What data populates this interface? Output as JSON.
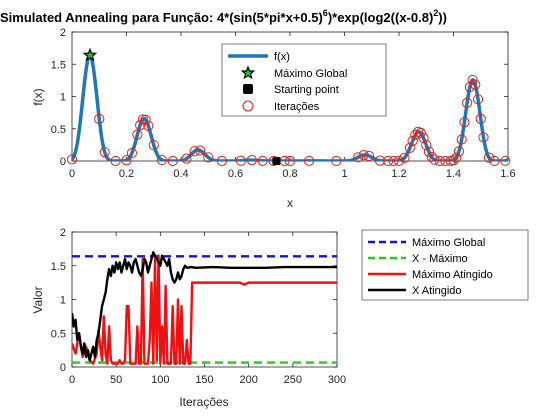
{
  "colors": {
    "fx": "#1f77b4",
    "iter": "#e8201a",
    "global_max": "#1010ee",
    "x_max": "#22cc22",
    "max_reached": "#ee1111",
    "x_reached": "#000000",
    "star": "#22bb22"
  },
  "chart_data": [
    {
      "type": "line",
      "title_main": "Simulated Annealing para Função:  4*(sin(5*pi*x+0.5)",
      "title_exp1": "6",
      "title_mid": ")*exp(log2((x-0.8)",
      "title_exp2": "2",
      "title_end": "))",
      "xlabel": "x",
      "ylabel": "f(x)",
      "xlim": [
        0,
        1.6
      ],
      "ylim": [
        0,
        2
      ],
      "xticks": [
        "0",
        "0.2",
        "0.4",
        "0.6",
        "0.8",
        "1",
        "1.2",
        "1.4",
        "1.6"
      ],
      "yticks": [
        "0",
        "0.5",
        "1",
        "1.5",
        "2"
      ],
      "grid": false,
      "legend": {
        "placement": "top-center",
        "entries": [
          "f(x)",
          "Máximo Global",
          "Starting point",
          "Iterações"
        ]
      },
      "global_max": {
        "x": 0.066,
        "y": 1.64
      },
      "starting_point": {
        "x": 0.75,
        "y": 0.0
      },
      "iterations_x": [
        0.0,
        0.1,
        0.12,
        0.16,
        0.2,
        0.22,
        0.24,
        0.25,
        0.26,
        0.27,
        0.28,
        0.3,
        0.33,
        0.37,
        0.42,
        0.45,
        0.47,
        0.5,
        0.55,
        0.62,
        0.66,
        0.7,
        0.74,
        0.78,
        0.8,
        0.87,
        0.97,
        1.05,
        1.07,
        1.09,
        1.13,
        1.16,
        1.18,
        1.2,
        1.22,
        1.24,
        1.25,
        1.26,
        1.27,
        1.28,
        1.29,
        1.3,
        1.31,
        1.32,
        1.33,
        1.35,
        1.37,
        1.39,
        1.4,
        1.41,
        1.42,
        1.43,
        1.44,
        1.45,
        1.46,
        1.47,
        1.48,
        1.49,
        1.5,
        1.51,
        1.53,
        1.55,
        1.59
      ]
    },
    {
      "type": "line",
      "xlabel": "Iterações",
      "ylabel": "Valor",
      "xlim": [
        0,
        300
      ],
      "ylim": [
        0,
        2
      ],
      "xticks": [
        "0",
        "50",
        "100",
        "150",
        "200",
        "250",
        "300"
      ],
      "yticks": [
        "0",
        "0.5",
        "1",
        "1.5",
        "2"
      ],
      "grid": false,
      "legend": {
        "placement": "outside-right"
      },
      "series": [
        {
          "name": "Máximo Global",
          "style": "dashed",
          "x": [
            0,
            300
          ],
          "values": [
            1.64,
            1.64
          ]
        },
        {
          "name": "X - Máximo",
          "style": "dashed",
          "x": [
            0,
            300
          ],
          "values": [
            0.066,
            0.066
          ]
        },
        {
          "name": "Máximo Atingido",
          "style": "solid",
          "x": [
            0,
            4,
            8,
            12,
            16,
            20,
            24,
            28,
            30,
            32,
            34,
            36,
            38,
            40,
            42,
            44,
            46,
            48,
            50,
            52,
            54,
            56,
            58,
            60,
            62,
            64,
            66,
            68,
            70,
            72,
            74,
            76,
            78,
            80,
            82,
            84,
            86,
            88,
            90,
            92,
            94,
            96,
            98,
            100,
            102,
            104,
            106,
            108,
            110,
            112,
            114,
            116,
            118,
            120,
            122,
            124,
            126,
            128,
            130,
            132,
            134,
            136,
            140,
            150,
            160,
            170,
            180,
            190,
            195,
            200,
            210,
            300
          ],
          "values": [
            0.35,
            0.2,
            0.5,
            0.15,
            0.3,
            0.1,
            0.05,
            0.2,
            0.55,
            0.3,
            0.1,
            0.75,
            0.2,
            0.05,
            0.6,
            0.1,
            0.05,
            0.05,
            0.05,
            0.05,
            0.1,
            0.05,
            0.05,
            0.1,
            0.9,
            0.9,
            0.05,
            0.05,
            0.05,
            0.05,
            0.6,
            0.05,
            0.05,
            1.6,
            0.05,
            0.05,
            0.05,
            0.4,
            1.25,
            0.05,
            1.6,
            0.1,
            1.65,
            0.05,
            0.6,
            0.05,
            1.2,
            0.05,
            0.05,
            0.05,
            0.9,
            0.05,
            0.05,
            1.0,
            0.05,
            0.9,
            0.05,
            0.05,
            0.4,
            0.05,
            0.05,
            1.25,
            1.25,
            1.25,
            1.25,
            1.25,
            1.25,
            1.25,
            1.22,
            1.25,
            1.25,
            1.25
          ]
        },
        {
          "name": "X Atingido",
          "style": "solid",
          "x": [
            0,
            2,
            4,
            6,
            8,
            10,
            12,
            14,
            16,
            18,
            20,
            22,
            24,
            26,
            28,
            30,
            32,
            34,
            36,
            38,
            40,
            42,
            44,
            46,
            48,
            50,
            52,
            54,
            56,
            58,
            60,
            62,
            64,
            66,
            68,
            70,
            72,
            74,
            76,
            78,
            80,
            82,
            84,
            86,
            88,
            90,
            92,
            94,
            96,
            98,
            100,
            102,
            104,
            106,
            108,
            110,
            112,
            114,
            116,
            118,
            120,
            122,
            124,
            126,
            128,
            130,
            135,
            140,
            160,
            180,
            200,
            220,
            240,
            260,
            280,
            300
          ],
          "values": [
            0.8,
            0.6,
            0.7,
            0.4,
            0.5,
            0.3,
            0.2,
            0.35,
            0.15,
            0.25,
            0.1,
            0.2,
            0.3,
            0.15,
            0.4,
            0.5,
            0.7,
            0.9,
            1.0,
            1.1,
            1.3,
            1.45,
            1.35,
            1.5,
            1.4,
            1.55,
            1.45,
            1.55,
            1.4,
            1.5,
            1.6,
            1.45,
            1.55,
            1.5,
            1.4,
            1.55,
            1.6,
            1.5,
            1.4,
            1.35,
            1.45,
            1.6,
            1.55,
            1.4,
            1.5,
            1.6,
            1.7,
            1.65,
            1.6,
            1.55,
            1.5,
            1.65,
            1.6,
            1.55,
            1.5,
            1.6,
            1.4,
            1.3,
            1.25,
            1.3,
            1.4,
            1.3,
            1.35,
            1.45,
            1.5,
            1.47,
            1.48,
            1.47,
            1.48,
            1.47,
            1.47,
            1.47,
            1.48,
            1.48,
            1.48,
            1.48
          ]
        }
      ]
    }
  ]
}
